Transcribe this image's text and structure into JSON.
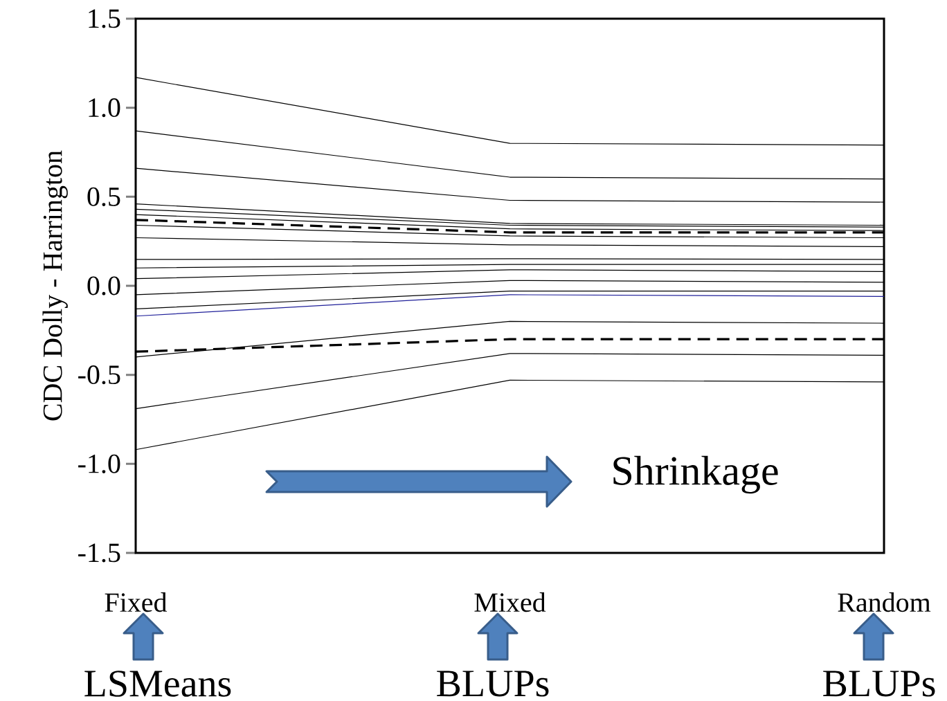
{
  "chart_data": {
    "type": "line",
    "ylabel": "CDC Dolly - Harrington",
    "categories": [
      "Fixed",
      "Mixed",
      "Random"
    ],
    "ylim": [
      -1.5,
      1.5
    ],
    "yticks": [
      {
        "value": -1.5,
        "label": "-1.5"
      },
      {
        "value": -1.0,
        "label": "-1.0"
      },
      {
        "value": -0.5,
        "label": "-0.5"
      },
      {
        "value": 0.0,
        "label": "0.0"
      },
      {
        "value": 0.5,
        "label": "0.5"
      },
      {
        "value": 1.0,
        "label": "1.0"
      },
      {
        "value": 1.5,
        "label": "1.5"
      }
    ],
    "marker": "none",
    "line_style": "solid",
    "annotations": [
      "Shrinkage",
      "LSMeans",
      "BLUPs",
      "BLUPs"
    ],
    "series": [
      {
        "color": "#000000",
        "values": [
          1.17,
          0.8,
          0.79
        ]
      },
      {
        "color": "#000000",
        "values": [
          0.87,
          0.61,
          0.6
        ]
      },
      {
        "color": "#000000",
        "values": [
          0.66,
          0.48,
          0.47
        ]
      },
      {
        "color": "#000000",
        "values": [
          0.46,
          0.35,
          0.34
        ]
      },
      {
        "color": "#000000",
        "values": [
          0.43,
          0.34,
          0.33
        ]
      },
      {
        "color": "#000000",
        "values": [
          0.4,
          0.32,
          0.31
        ]
      },
      {
        "color": "#000000",
        "values": [
          0.37,
          0.3,
          0.3
        ],
        "line_style": "dashed"
      },
      {
        "color": "#000000",
        "values": [
          0.34,
          0.28,
          0.27
        ]
      },
      {
        "color": "#000000",
        "values": [
          0.27,
          0.23,
          0.22
        ]
      },
      {
        "color": "#000000",
        "values": [
          0.148,
          0.152,
          0.148
        ]
      },
      {
        "color": "#000000",
        "values": [
          0.1,
          0.12,
          0.12
        ]
      },
      {
        "color": "#000000",
        "values": [
          0.04,
          0.09,
          0.08
        ]
      },
      {
        "color": "#000000",
        "values": [
          -0.05,
          0.03,
          0.02
        ]
      },
      {
        "color": "#000000",
        "values": [
          -0.13,
          -0.03,
          -0.03
        ]
      },
      {
        "color": "#1f1f99",
        "values": [
          -0.17,
          -0.05,
          -0.06
        ]
      },
      {
        "color": "#000000",
        "values": [
          -0.4,
          -0.2,
          -0.21
        ]
      },
      {
        "color": "#000000",
        "values": [
          -0.37,
          -0.3,
          -0.3
        ],
        "line_style": "dashed"
      },
      {
        "color": "#000000",
        "values": [
          -0.69,
          -0.38,
          -0.39
        ]
      },
      {
        "color": "#000000",
        "values": [
          -0.92,
          -0.53,
          -0.54
        ]
      }
    ]
  }
}
